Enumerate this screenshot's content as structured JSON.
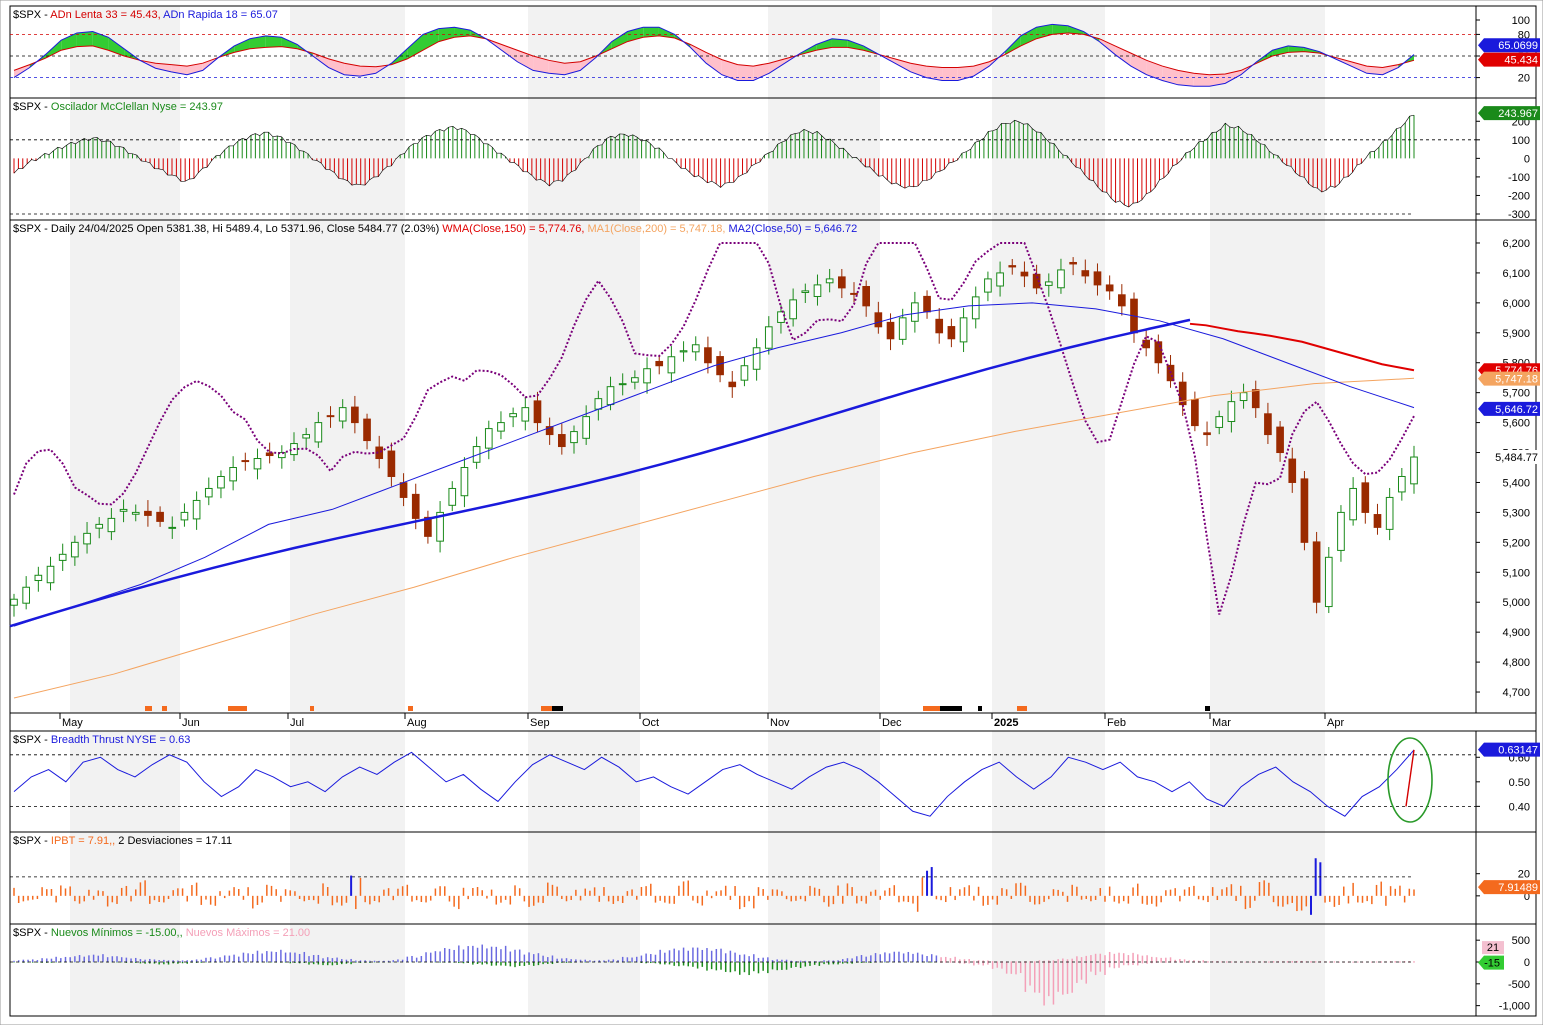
{
  "chart_data": [
    {
      "type": "area",
      "ticker": "$SPX",
      "legend": [
        {
          "label": "ADn Lenta 33 = 45.43",
          "color": "#d40000"
        },
        {
          "label": "ADn Rapida 18 = 65.07",
          "color": "#1a1adc"
        }
      ],
      "y_ticks": [
        "100",
        "80",
        "50",
        "20"
      ],
      "ylim": [
        0,
        100
      ],
      "reference_levels": [
        20,
        50,
        80
      ],
      "readouts": [
        {
          "label": "65.0699",
          "color": "#1a1adc"
        },
        {
          "label": "45.434",
          "color": "#e00000"
        }
      ],
      "series": [
        {
          "name": "ADn Lenta 33",
          "values": [
            30,
            38,
            47,
            58,
            63,
            64,
            58,
            50,
            44,
            40,
            38,
            36,
            40,
            48,
            55,
            60,
            62,
            63,
            60,
            54,
            46,
            40,
            36,
            35,
            38,
            46,
            58,
            70,
            76,
            78,
            74,
            66,
            58,
            50,
            44,
            40,
            42,
            50,
            60,
            70,
            76,
            78,
            75,
            66,
            55,
            45,
            38,
            36,
            40,
            46,
            52,
            58,
            62,
            62,
            58,
            52,
            46,
            40,
            36,
            34,
            34,
            36,
            42,
            52,
            64,
            74,
            80,
            82,
            80,
            74,
            64,
            54,
            44,
            36,
            30,
            26,
            24,
            25,
            30,
            40,
            50,
            55,
            56,
            54,
            48,
            42,
            36,
            34,
            38,
            44
          ]
        },
        {
          "name": "ADn Rapida 18",
          "values": [
            20,
            34,
            52,
            72,
            82,
            84,
            76,
            60,
            44,
            33,
            28,
            24,
            30,
            48,
            64,
            74,
            78,
            76,
            66,
            50,
            34,
            24,
            22,
            26,
            40,
            60,
            80,
            88,
            90,
            86,
            74,
            58,
            42,
            30,
            26,
            24,
            30,
            48,
            70,
            84,
            90,
            90,
            80,
            62,
            40,
            24,
            16,
            16,
            26,
            40,
            54,
            66,
            74,
            72,
            64,
            52,
            40,
            28,
            20,
            16,
            16,
            22,
            36,
            56,
            78,
            90,
            94,
            92,
            84,
            70,
            52,
            36,
            24,
            16,
            10,
            8,
            8,
            12,
            24,
            42,
            58,
            64,
            62,
            56,
            46,
            36,
            26,
            24,
            34,
            52
          ]
        }
      ]
    },
    {
      "type": "bar",
      "ticker": "$SPX",
      "legend": [
        {
          "label": "Oscilador McClellan Nyse = 243.97",
          "color": "#1a8a1a"
        }
      ],
      "y_ticks": [
        "200",
        "100",
        "0",
        "-100",
        "-200",
        "-300"
      ],
      "ylim": [
        -300,
        250
      ],
      "readouts": [
        {
          "label": "243.967",
          "color": "#1a8a1a"
        }
      ],
      "values": [
        -80,
        -20,
        20,
        60,
        90,
        110,
        90,
        50,
        0,
        -50,
        -90,
        -130,
        -60,
        20,
        80,
        120,
        140,
        110,
        60,
        0,
        -60,
        -120,
        -150,
        -100,
        -30,
        50,
        110,
        150,
        170,
        140,
        80,
        20,
        -40,
        -100,
        -140,
        -110,
        -30,
        60,
        120,
        130,
        100,
        50,
        -20,
        -80,
        -120,
        -150,
        -110,
        -40,
        30,
        100,
        150,
        140,
        90,
        30,
        -30,
        -90,
        -140,
        -160,
        -120,
        -60,
        0,
        70,
        140,
        190,
        200,
        150,
        80,
        0,
        -80,
        -160,
        -230,
        -260,
        -200,
        -110,
        -20,
        60,
        120,
        180,
        160,
        100,
        30,
        -40,
        -110,
        -180,
        -150,
        -80,
        10,
        80,
        160,
        240
      ]
    },
    {
      "type": "candlestick",
      "ticker": "$SPX",
      "header": "$SPX - Daily 24/04/2025 Open 5381.38, Hi 5489.4, Lo 5371.96, Close 5484.77 (2.03%)",
      "legend": [
        {
          "label": "WMA(Close,150) = 5,774.76",
          "color": "#e00000"
        },
        {
          "label": "MA1(Close,200) = 5,747.18",
          "color": "#f4a460"
        },
        {
          "label": "MA2(Close,50) = 5,646.72",
          "color": "#1a1adc"
        }
      ],
      "y_ticks": [
        "6,200",
        "6,100",
        "6,000",
        "5,900",
        "5,800",
        "5,700",
        "5,600",
        "5,500",
        "5,400",
        "5,300",
        "5,200",
        "5,100",
        "5,000",
        "4,900",
        "4,800",
        "4,700"
      ],
      "ylim": [
        4650,
        6230
      ],
      "x_labels": [
        "May",
        "Jun",
        "Jul",
        "Aug",
        "Sep",
        "Oct",
        "Nov",
        "Dec",
        "2025",
        "Feb",
        "Mar",
        "Apr"
      ],
      "readouts": [
        {
          "label": "5,774.76",
          "color": "#e00000"
        },
        {
          "label": "5,747.18",
          "color": "#f4a460"
        },
        {
          "label": "5,646.72",
          "color": "#1a1adc"
        },
        {
          "label": "5,484.77",
          "color": "#000000"
        }
      ],
      "close": [
        5010,
        5050,
        5090,
        5120,
        5160,
        5200,
        5230,
        5260,
        5280,
        5310,
        5300,
        5290,
        5270,
        5250,
        5300,
        5340,
        5380,
        5420,
        5450,
        5470,
        5480,
        5490,
        5500,
        5530,
        5560,
        5600,
        5620,
        5650,
        5600,
        5540,
        5480,
        5420,
        5350,
        5280,
        5220,
        5300,
        5380,
        5450,
        5520,
        5580,
        5600,
        5630,
        5650,
        5600,
        5560,
        5520,
        5570,
        5620,
        5680,
        5720,
        5730,
        5750,
        5780,
        5790,
        5820,
        5840,
        5860,
        5800,
        5760,
        5720,
        5790,
        5850,
        5920,
        5970,
        6010,
        6040,
        6060,
        6080,
        6050,
        6030,
        5990,
        5920,
        5880,
        5950,
        6000,
        5970,
        5900,
        5880,
        5950,
        6020,
        6080,
        6100,
        6120,
        6090,
        6050,
        6070,
        6110,
        6130,
        6090,
        6060,
        6040,
        5990,
        5900,
        5850,
        5800,
        5740,
        5660,
        5590,
        5560,
        5620,
        5670,
        5700,
        5650,
        5560,
        5500,
        5400,
        5200,
        5000,
        5150,
        5300,
        5380,
        5300,
        5250,
        5350,
        5420,
        5485
      ],
      "series": [
        {
          "name": "WMA(Close,150)",
          "values": [
            5930,
            5925,
            5915,
            5905,
            5898,
            5890,
            5880,
            5870,
            5855,
            5840,
            5825,
            5810,
            5795,
            5785,
            5775
          ]
        },
        {
          "name": "MA1(Close,200)",
          "values": [
            4680,
            4760,
            4860,
            4960,
            5050,
            5150,
            5240,
            5330,
            5420,
            5500,
            5570,
            5630,
            5690,
            5730,
            5748
          ]
        },
        {
          "name": "MA2(Close,50)",
          "values": [
            4920,
            4990,
            5060,
            5150,
            5260,
            5310,
            5390,
            5470,
            5550,
            5630,
            5710,
            5790,
            5850,
            5900,
            5960,
            5990,
            6000,
            5980,
            5940,
            5880,
            5800,
            5720,
            5650
          ]
        }
      ]
    },
    {
      "type": "line",
      "ticker": "$SPX",
      "legend": [
        {
          "label": "Breadth Thrust NYSE = 0.63",
          "color": "#1a1adc"
        }
      ],
      "y_ticks": [
        "0.60",
        "0.50",
        "0.40"
      ],
      "ylim": [
        0.32,
        0.65
      ],
      "reference_levels": [
        0.4,
        0.61
      ],
      "readouts": [
        {
          "label": "0.63147",
          "color": "#1a1adc"
        }
      ],
      "values": [
        0.46,
        0.52,
        0.55,
        0.5,
        0.58,
        0.6,
        0.55,
        0.52,
        0.57,
        0.61,
        0.58,
        0.5,
        0.44,
        0.48,
        0.55,
        0.52,
        0.48,
        0.5,
        0.46,
        0.52,
        0.56,
        0.53,
        0.58,
        0.62,
        0.56,
        0.5,
        0.53,
        0.47,
        0.42,
        0.5,
        0.57,
        0.61,
        0.58,
        0.55,
        0.6,
        0.56,
        0.5,
        0.52,
        0.48,
        0.45,
        0.5,
        0.55,
        0.57,
        0.53,
        0.5,
        0.47,
        0.52,
        0.56,
        0.58,
        0.55,
        0.5,
        0.44,
        0.38,
        0.36,
        0.44,
        0.5,
        0.55,
        0.58,
        0.52,
        0.47,
        0.52,
        0.6,
        0.58,
        0.55,
        0.58,
        0.52,
        0.5,
        0.46,
        0.5,
        0.43,
        0.4,
        0.48,
        0.53,
        0.56,
        0.5,
        0.46,
        0.4,
        0.36,
        0.44,
        0.48,
        0.55,
        0.63
      ]
    },
    {
      "type": "bar",
      "ticker": "$SPX",
      "legend": [
        {
          "label": "IPBT = 7.91,",
          "color": "#f46a1e"
        },
        {
          "label": "2 Desviaciones = 17.11",
          "color": "#000000"
        }
      ],
      "y_ticks": [
        "20",
        "0"
      ],
      "ylim": [
        -20,
        45
      ],
      "reference_levels": [
        17.11
      ],
      "readouts": [
        {
          "label": "7.91489",
          "color": "#f46a1e"
        }
      ],
      "values": [
        12,
        -5,
        8,
        10,
        -8,
        6,
        -10,
        9,
        14,
        -6,
        7,
        12,
        -9,
        5,
        8,
        -12,
        10,
        6,
        -5,
        12,
        -10,
        20,
        -8,
        7,
        10,
        -6,
        9,
        -12,
        8,
        6,
        -8,
        10,
        -10,
        12,
        -5,
        7,
        9,
        -8,
        6,
        11,
        -7,
        14,
        -9,
        5,
        10,
        -12,
        8,
        6,
        -5,
        9,
        -10,
        12,
        -8,
        6,
        10,
        -7,
        26,
        -6,
        8,
        10,
        -9,
        7,
        12,
        -8,
        6,
        10,
        -5,
        9,
        -8,
        12,
        -10,
        7,
        9,
        -6,
        8,
        11,
        -12,
        14,
        -10,
        -14,
        34,
        -10,
        12,
        -8,
        15,
        10,
        8
      ]
    },
    {
      "type": "bar",
      "ticker": "$SPX",
      "legend": [
        {
          "label": "Nuevos Mínimos = -15.00,",
          "color": "#1a8a1a"
        },
        {
          "label": "Nuevos Máximos = 21.00",
          "color": "#f4a0b8"
        }
      ],
      "y_ticks": [
        "500",
        "0",
        "-500",
        "-1,000"
      ],
      "ylim": [
        -1100,
        550
      ],
      "readouts": [
        {
          "label": "21",
          "color": "#f4a0b8"
        },
        {
          "label": "-15",
          "color": "#1a8a1a"
        }
      ],
      "series": [
        {
          "name": "Nuevos Máximos",
          "values": [
            40,
            60,
            90,
            120,
            160,
            180,
            140,
            100,
            70,
            50,
            40,
            60,
            110,
            170,
            220,
            260,
            280,
            230,
            170,
            110,
            70,
            40,
            30,
            60,
            140,
            250,
            330,
            380,
            400,
            370,
            300,
            220,
            150,
            90,
            60,
            40,
            60,
            120,
            200,
            280,
            330,
            350,
            320,
            260,
            180,
            110,
            60,
            30,
            20,
            40,
            90,
            160,
            220,
            250,
            230,
            180,
            120,
            70,
            40,
            20,
            15,
            20,
            40,
            80,
            140,
            200,
            230,
            210,
            160,
            110,
            70,
            40,
            20,
            15,
            10,
            15,
            20,
            25,
            20,
            15,
            10,
            10,
            15,
            20,
            21
          ]
        },
        {
          "name": "Nuevos Mínimos",
          "values": [
            -10,
            -15,
            -20,
            -10,
            -5,
            -5,
            -10,
            -20,
            -40,
            -60,
            -40,
            -20,
            -10,
            -5,
            -5,
            -10,
            -15,
            -30,
            -60,
            -80,
            -50,
            -20,
            -10,
            -5,
            -5,
            -10,
            -15,
            -30,
            -60,
            -90,
            -120,
            -90,
            -50,
            -20,
            -10,
            -5,
            -5,
            -10,
            -30,
            -60,
            -100,
            -150,
            -200,
            -250,
            -300,
            -260,
            -200,
            -140,
            -90,
            -60,
            -40,
            -20,
            -10,
            -5,
            -5,
            -10,
            -20,
            -40,
            -80,
            -160,
            -300,
            -700,
            -1000,
            -800,
            -500,
            -300,
            -150,
            -80,
            -40,
            -20,
            -15,
            -15,
            -15,
            -15,
            -15,
            -15,
            -15,
            -15,
            -15,
            -15,
            -15,
            -15,
            -15,
            -15,
            -15
          ]
        }
      ]
    }
  ]
}
